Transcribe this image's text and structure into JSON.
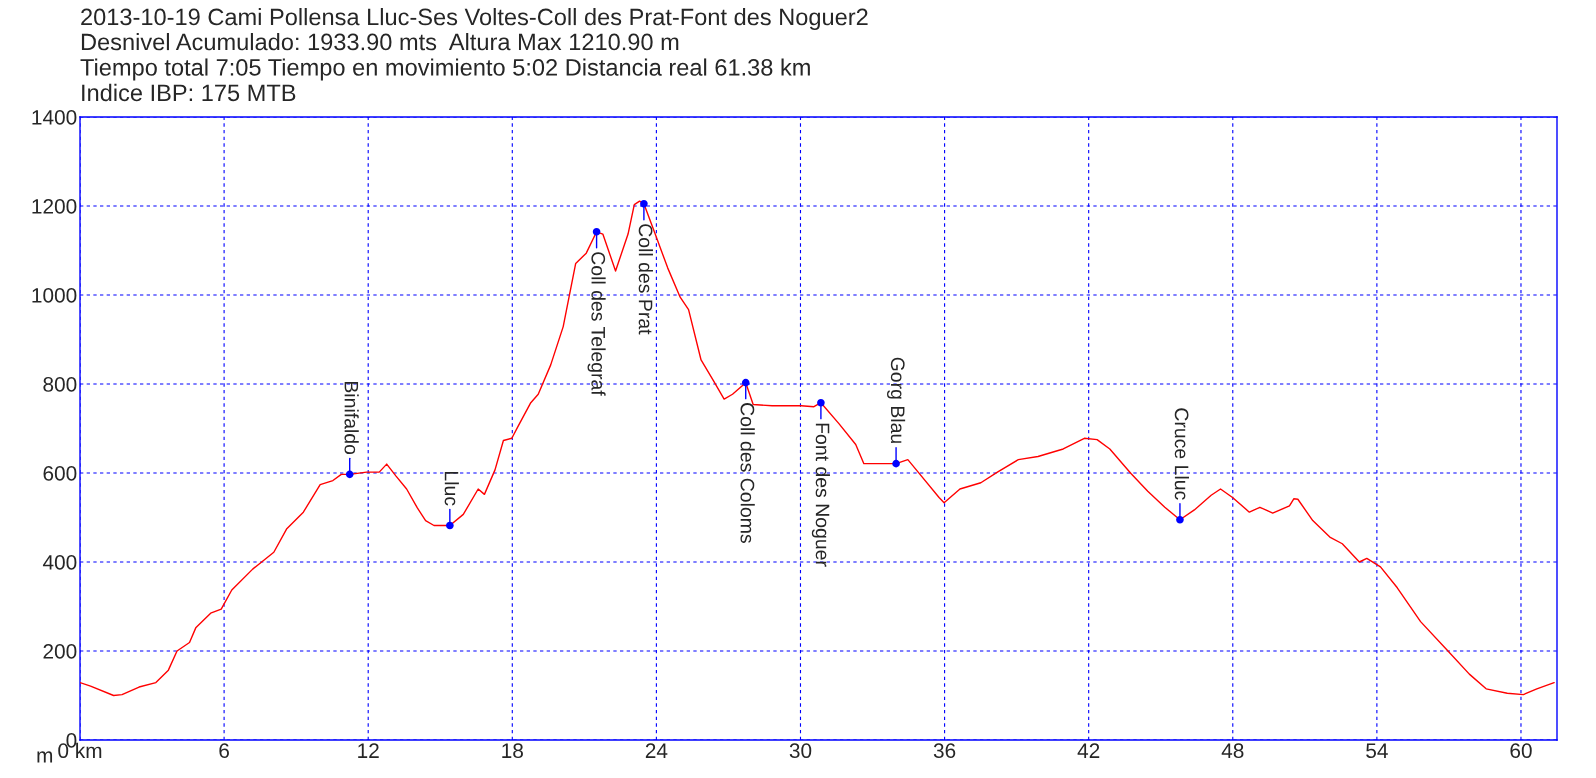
{
  "chart_data": {
    "type": "line",
    "title": "2013-10-19 Cami Pollensa Lluc-Ses Voltes-Coll des Prat-Font des Noguer2",
    "subtitle": "Desnivel Acumulado: 1933.90 mts  Altura Max 1210.90 m\nTiempo total 7:05 Tiempo en movimiento 5:02 Distancia real 61.38 km\nIndice IBP: 175 MTB",
    "ylabel": "m",
    "xlim": [
      0,
      61.5
    ],
    "ylim": [
      0,
      1400
    ],
    "xticks": [
      {
        "value": 0,
        "label": "0 km"
      },
      6,
      12,
      18,
      24,
      30,
      36,
      42,
      48,
      54,
      60
    ],
    "yticks": [
      0,
      200,
      400,
      600,
      800,
      1000,
      1200,
      1400
    ],
    "grid": true,
    "series": [
      {
        "type": "line",
        "color": "#ff0000",
        "x": [
          0,
          0.44,
          1.4,
          1.75,
          2.46,
          3.16,
          3.68,
          4.04,
          4.56,
          4.82,
          5.44,
          5.88,
          6.32,
          7.19,
          8.07,
          8.6,
          9.3,
          10.0,
          10.53,
          10.88,
          11.23,
          11.93,
          12.46,
          12.77,
          13.16,
          13.6,
          14.04,
          14.39,
          14.74,
          15.4,
          15.96,
          16.58,
          16.84,
          17.28,
          17.63,
          17.98,
          18.25,
          18.77,
          19.08,
          19.6,
          20.12,
          20.64,
          21.08,
          21.51,
          21.77,
          22.3,
          22.82,
          23.08,
          23.3,
          23.48,
          23.95,
          24.47,
          24.99,
          25.34,
          25.86,
          26.38,
          26.82,
          27.17,
          27.72,
          28.03,
          28.82,
          30.03,
          30.56,
          30.85,
          31.6,
          32.3,
          32.64,
          33.34,
          33.98,
          34.47,
          34.9,
          35.77,
          35.98,
          36.64,
          37.51,
          38.2,
          39.07,
          39.89,
          40.94,
          41.82,
          42.35,
          42.88,
          43.76,
          44.46,
          45.17,
          45.8,
          46.4,
          47.1,
          47.49,
          47.99,
          48.69,
          49.13,
          49.66,
          50.36,
          50.54,
          50.71,
          51.33,
          52.04,
          52.56,
          53.27,
          53.58,
          54.15,
          54.85,
          55.82,
          56.96,
          57.85,
          58.55,
          59.43,
          60.1,
          60.66,
          61.38
        ],
        "values": [
          129,
          121,
          100,
          102,
          119,
          129,
          157,
          200,
          219,
          252,
          285,
          294,
          337,
          384,
          422,
          474,
          512,
          574,
          583,
          597,
          597,
          602,
          602,
          620,
          593,
          564,
          522,
          493,
          482,
          482,
          507,
          564,
          552,
          607,
          673,
          678,
          706,
          758,
          777,
          843,
          929,
          1071,
          1094,
          1142,
          1137,
          1054,
          1137,
          1203,
          1211,
          1205,
          1137,
          1061,
          995,
          967,
          854,
          807,
          766,
          777,
          803,
          754,
          751,
          751,
          749,
          758,
          711,
          664,
          621,
          621,
          621,
          630,
          602,
          545,
          533,
          564,
          578,
          602,
          630,
          637,
          654,
          678,
          675,
          654,
          599,
          559,
          523,
          495,
          517,
          550,
          564,
          545,
          512,
          523,
          510,
          526,
          542,
          541,
          493,
          456,
          441,
          400,
          408,
          389,
          342,
          266,
          200,
          148,
          115,
          105,
          102,
          115,
          129
        ]
      },
      {
        "type": "scatter",
        "color": "#0000ff",
        "marker": "circle",
        "x": [
          11.23,
          15.4,
          21.51,
          23.48,
          27.72,
          30.85,
          33.98,
          45.8
        ],
        "values": [
          597,
          482,
          1142,
          1205,
          803,
          758,
          621,
          495
        ]
      }
    ],
    "annotations": [
      {
        "text": "Binifaldo",
        "x": 11.23,
        "y": 597
      },
      {
        "text": "Lluc",
        "x": 15.4,
        "y": 482
      },
      {
        "text": "Coll des Telegraf",
        "x": 21.51,
        "y": 1142
      },
      {
        "text": "Coll des Prat",
        "x": 23.48,
        "y": 1205
      },
      {
        "text": "Coll des Coloms",
        "x": 27.72,
        "y": 803
      },
      {
        "text": "Font des Noguer",
        "x": 30.85,
        "y": 758
      },
      {
        "text": "Gorg Blau",
        "x": 33.98,
        "y": 621
      },
      {
        "text": "Cruce Lluc",
        "x": 45.8,
        "y": 495
      }
    ]
  }
}
